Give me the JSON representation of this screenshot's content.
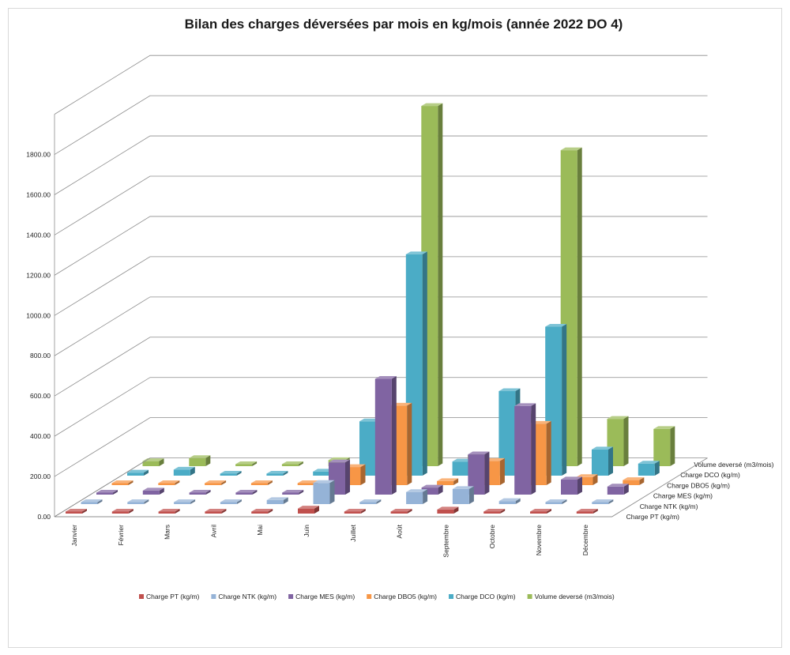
{
  "chart_data": {
    "type": "bar",
    "subtype": "3d-column",
    "title": "Bilan des charges déversées par mois en kg/mois (année 2022 DO 4)",
    "categories": [
      "Janvier",
      "Février",
      "Mars",
      "Avril",
      "Mai",
      "Juin",
      "Juillet",
      "Août",
      "Septembre",
      "Octobre",
      "Novembre",
      "Décembre"
    ],
    "ylim": [
      0,
      1800
    ],
    "yticks": [
      "0.00",
      "200.00",
      "400.00",
      "600.00",
      "800.00",
      "1000.00",
      "1200.00",
      "1400.00",
      "1600.00",
      "1800.00"
    ],
    "grid": true,
    "legend_position": "bottom",
    "series": [
      {
        "name": "Charge PT (kg/m)",
        "color": "#c0504d",
        "values": [
          0,
          0,
          0,
          0,
          0,
          25,
          0,
          10,
          20,
          0,
          0,
          0
        ]
      },
      {
        "name": "Charge NTK (kg/m)",
        "color": "#95b3d7",
        "values": [
          5,
          5,
          5,
          5,
          20,
          105,
          10,
          60,
          75,
          15,
          5,
          10
        ]
      },
      {
        "name": "Charge MES (kg/m)",
        "color": "#8064a2",
        "values": [
          5,
          20,
          5,
          10,
          10,
          160,
          575,
          35,
          200,
          440,
          75,
          40
        ]
      },
      {
        "name": "Charge DBO5 (kg/m)",
        "color": "#f79646",
        "values": [
          5,
          10,
          5,
          5,
          10,
          90,
          395,
          20,
          120,
          305,
          40,
          25
        ]
      },
      {
        "name": "Charge DCO (kg/m)",
        "color": "#4bacc6",
        "values": [
          15,
          30,
          5,
          5,
          20,
          270,
          1100,
          70,
          420,
          740,
          130,
          60
        ]
      },
      {
        "name": "Volume deversé (m3/mois)",
        "color": "#9bbb59",
        "values": [
          25,
          40,
          5,
          5,
          30,
          20,
          1790,
          55,
          260,
          1570,
          235,
          185
        ]
      }
    ]
  }
}
